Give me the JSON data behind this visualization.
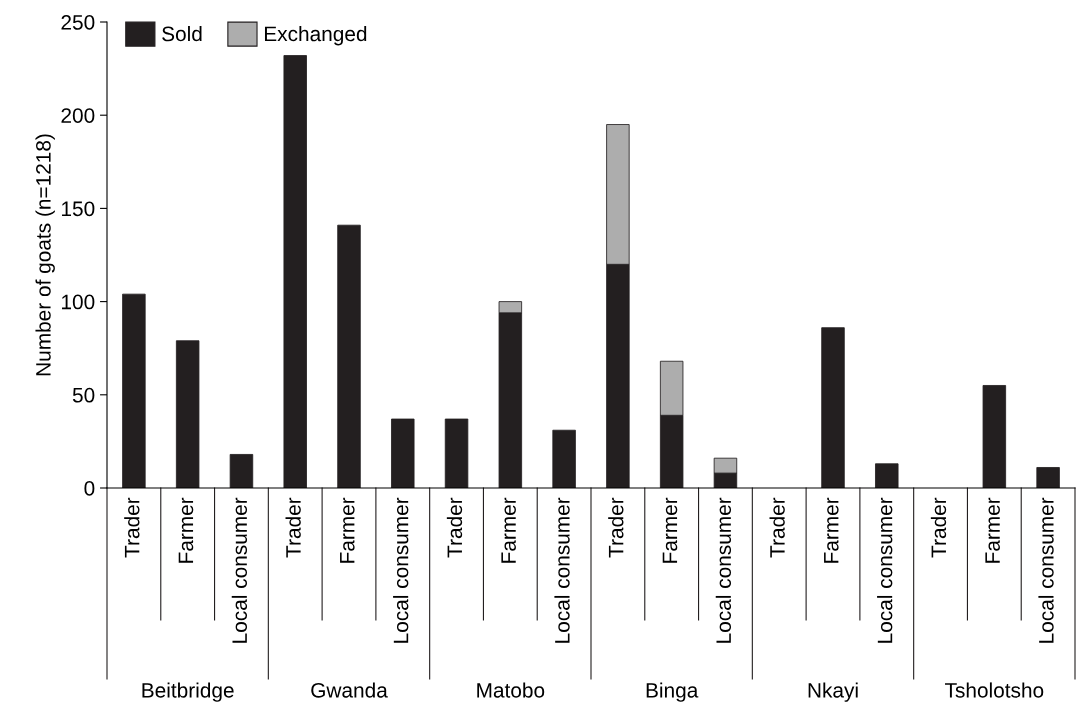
{
  "chart_data": {
    "type": "bar",
    "stacked": true,
    "ylabel": "Number of goats (n=1218)",
    "categories": [
      "Trader",
      "Farmer",
      "Local consumer",
      "Trader",
      "Farmer",
      "Local consumer",
      "Trader",
      "Farmer",
      "Local consumer",
      "Trader",
      "Farmer",
      "Local consumer",
      "Trader",
      "Farmer",
      "Local consumer",
      "Trader",
      "Farmer",
      "Local consumer"
    ],
    "series": [
      {
        "name": "Sold",
        "color": "#231f20",
        "values": [
          104,
          79,
          18,
          232,
          141,
          37,
          37,
          94,
          31,
          120,
          39,
          8,
          0,
          86,
          13,
          0,
          55,
          11
        ]
      },
      {
        "name": "Exchanged",
        "color": "#adadad",
        "values": [
          0,
          0,
          0,
          0,
          0,
          0,
          0,
          6,
          0,
          75,
          29,
          8,
          0,
          0,
          0,
          0,
          0,
          0
        ]
      }
    ],
    "annotations": [
      "Beitbridge",
      "Gwanda",
      "Matobo",
      "Binga",
      "Nkayi",
      "Tsholotsho"
    ],
    "ylim": [
      0,
      250
    ],
    "yticks": [
      0,
      50,
      100,
      150,
      200,
      250
    ],
    "grid": false,
    "legend": "top left"
  }
}
